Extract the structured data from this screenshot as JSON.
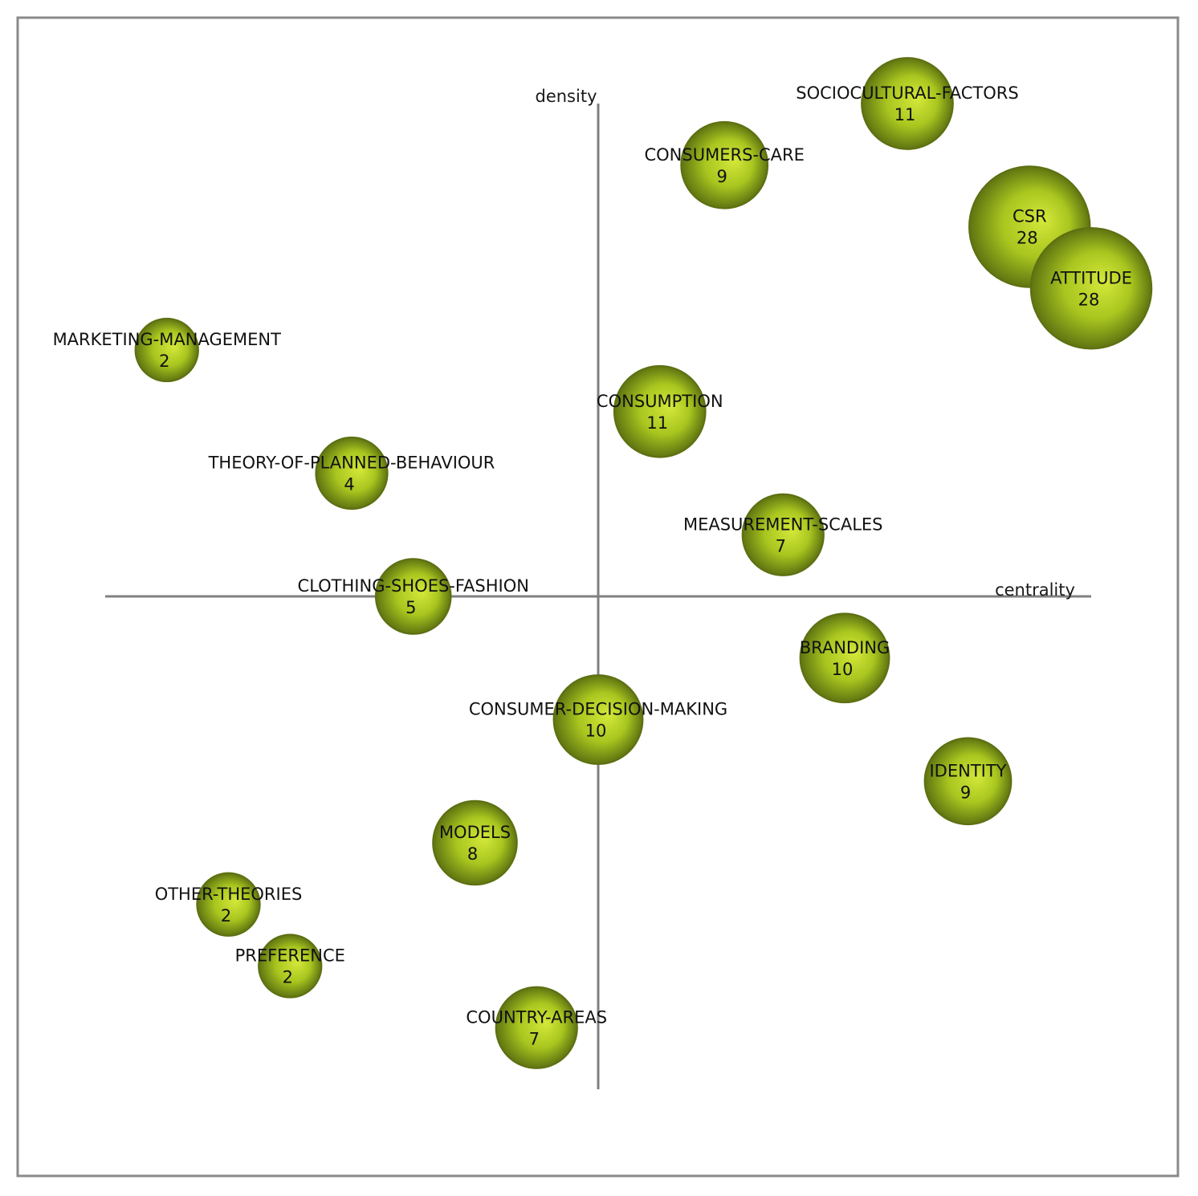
{
  "chart_data": {
    "type": "scatter",
    "title": "",
    "xlabel": "centrality",
    "ylabel": "density",
    "xlim": [
      -100,
      100
    ],
    "ylim": [
      -100,
      100
    ],
    "grid": false,
    "legend": "none",
    "colors": {
      "bubble_light": "#d4e83a",
      "bubble_mid": "#a9c61f",
      "bubble_dark": "#5f7411"
    },
    "points": [
      {
        "label": "SOCIOCULTURAL-FACTORS",
        "value": 11,
        "x": 62.7,
        "y": 100
      },
      {
        "label": "CONSUMERS-CARE",
        "value": 9,
        "x": 25.6,
        "y": 87.5
      },
      {
        "label": "CSR",
        "value": 28,
        "x": 87.5,
        "y": 75.0
      },
      {
        "label": "ATTITUDE",
        "value": 28,
        "x": 100,
        "y": 62.5
      },
      {
        "label": "MARKETING-MANAGEMENT",
        "value": 2,
        "x": -87.5,
        "y": 50.0
      },
      {
        "label": "CONSUMPTION",
        "value": 11,
        "x": 12.5,
        "y": 37.5
      },
      {
        "label": "THEORY-OF-PLANNED-BEHAVIOUR",
        "value": 4,
        "x": -50.0,
        "y": 25.0
      },
      {
        "label": "MEASUREMENT-SCALES",
        "value": 7,
        "x": 37.5,
        "y": 12.5
      },
      {
        "label": "CLOTHING-SHOES-FASHION",
        "value": 5,
        "x": -37.5,
        "y": 0
      },
      {
        "label": "BRANDING",
        "value": 10,
        "x": 50.0,
        "y": -12.5
      },
      {
        "label": "CONSUMER-DECISION-MAKING",
        "value": 10,
        "x": 0,
        "y": -25.0
      },
      {
        "label": "IDENTITY",
        "value": 9,
        "x": 75.0,
        "y": -37.5
      },
      {
        "label": "MODELS",
        "value": 8,
        "x": -25.0,
        "y": -50.0
      },
      {
        "label": "OTHER-THEORIES",
        "value": 2,
        "x": -75.0,
        "y": -62.5
      },
      {
        "label": "PREFERENCE",
        "value": 2,
        "x": -62.5,
        "y": -75.0
      },
      {
        "label": "COUNTRY-AREAS",
        "value": 7,
        "x": -12.5,
        "y": -87.5
      }
    ]
  }
}
